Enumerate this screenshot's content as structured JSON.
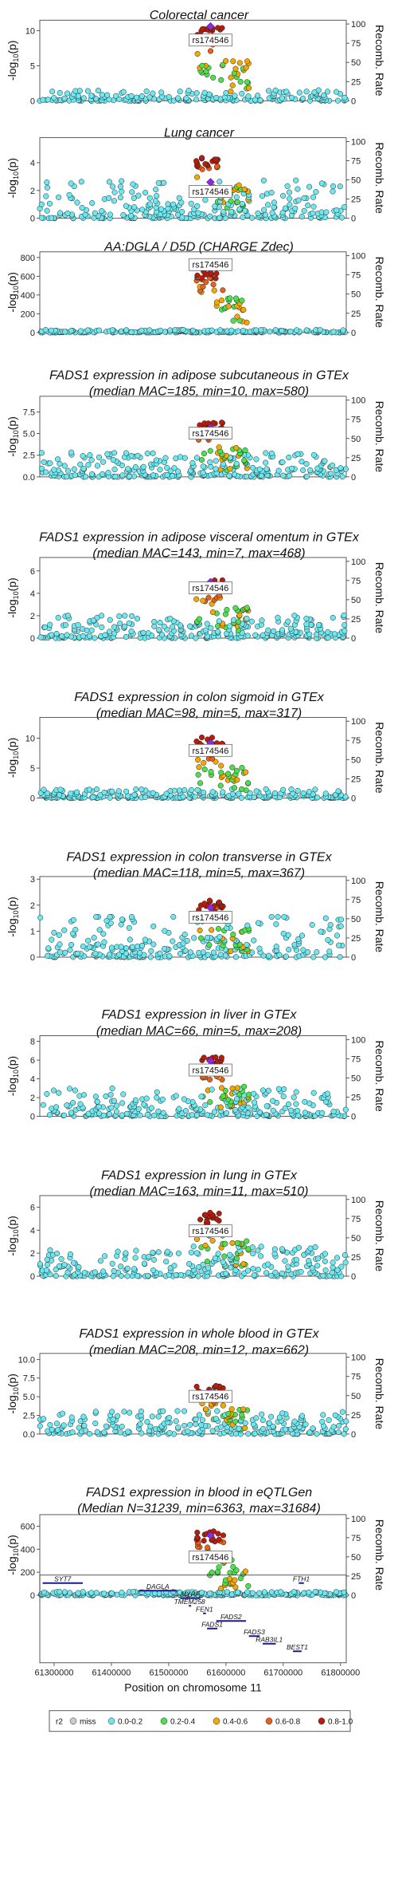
{
  "chart_data": {
    "type": "scatter",
    "lead_snp": "rs174546",
    "recomb_axis": {
      "label": "Recomb. Rate",
      "ticks": [
        0,
        25,
        50,
        75,
        100
      ]
    },
    "ylabel_parts": {
      "pre": "-log",
      "sub": "10",
      "post": "(p)"
    },
    "panels": [
      {
        "id": "crc",
        "title_lines": [
          "Colorectal cancer"
        ],
        "ymax": 11.5,
        "yticks": [
          0,
          5,
          10
        ],
        "yticklabels": [
          "0",
          "5",
          "10"
        ],
        "peak": 10.5,
        "nbg": 190,
        "bg_frac": 0.06,
        "label_y": 8.6,
        "lead_y": 10.6
      },
      {
        "id": "lung",
        "title_lines": [
          "Lung cancer"
        ],
        "ymax": 5.8,
        "yticks": [
          0,
          2,
          4
        ],
        "yticklabels": [
          "0",
          "2",
          "4"
        ],
        "peak": 4.4,
        "nbg": 260,
        "bg_frac": 0.22,
        "label_y": 1.9,
        "lead_y": 2.6
      },
      {
        "id": "aa",
        "title_lines": [
          "AA:DGLA / D5D (CHARGE Zdec)"
        ],
        "ymax": 860,
        "yticks": [
          0,
          200,
          400,
          600,
          800
        ],
        "yticklabels": [
          "0",
          "200",
          "400",
          "600",
          "800"
        ],
        "peak": 700,
        "nbg": 220,
        "bg_frac": 0.015,
        "label_y": 720,
        "lead_y": 680
      },
      {
        "id": "adip_sc",
        "title_lines": [
          "FADS1 expression in adipose subcutaneous in GTEx",
          "(median MAC=185, min=10, max=580)"
        ],
        "ymax": 9.3,
        "yticks": [
          0,
          2.5,
          5,
          7.5
        ],
        "yticklabels": [
          "0.0",
          "2.5",
          "5.0",
          "7.5"
        ],
        "peak": 6.4,
        "nbg": 260,
        "bg_frac": 0.14,
        "label_y": 5.0,
        "lead_y": 5.7
      },
      {
        "id": "adip_vo",
        "title_lines": [
          "FADS1 expression in adipose visceral omentum in GTEx",
          "(median MAC=143, min=7, max=468)"
        ],
        "ymax": 7.2,
        "yticks": [
          0,
          2,
          4,
          6
        ],
        "yticklabels": [
          "0",
          "2",
          "4",
          "6"
        ],
        "peak": 5.2,
        "nbg": 260,
        "bg_frac": 0.13,
        "label_y": 4.45,
        "lead_y": 5.0
      },
      {
        "id": "colon_sig",
        "title_lines": [
          "FADS1 expression in colon sigmoid in GTEx",
          "(median MAC=98, min=5, max=317)"
        ],
        "ymax": 13.5,
        "yticks": [
          0,
          5,
          10
        ],
        "yticklabels": [
          "0",
          "5",
          "10"
        ],
        "peak": 10.2,
        "nbg": 240,
        "bg_frac": 0.05,
        "label_y": 7.9,
        "lead_y": 9.2
      },
      {
        "id": "colon_tr",
        "title_lines": [
          "FADS1 expression in colon transverse in GTEx",
          "(median MAC=118, min=5, max=367)"
        ],
        "ymax": 3.1,
        "yticks": [
          0,
          1,
          2,
          3
        ],
        "yticklabels": [
          "0",
          "1",
          "2",
          "3"
        ],
        "peak": 2.2,
        "nbg": 260,
        "bg_frac": 0.25,
        "label_y": 1.52,
        "lead_y": 1.9
      },
      {
        "id": "liver",
        "title_lines": [
          "FADS1 expression in liver in GTEx",
          "(median MAC=66, min=5, max=208)"
        ],
        "ymax": 8.6,
        "yticks": [
          0,
          2,
          4,
          6,
          8
        ],
        "yticklabels": [
          "0",
          "2",
          "4",
          "6",
          "8"
        ],
        "peak": 6.3,
        "nbg": 250,
        "bg_frac": 0.16,
        "label_y": 4.9,
        "lead_y": 5.9
      },
      {
        "id": "lung_gtex",
        "title_lines": [
          "FADS1 expression in lung in GTEx",
          "(median MAC=163, min=11, max=510)"
        ],
        "ymax": 7.0,
        "yticks": [
          0,
          2,
          4,
          6
        ],
        "yticklabels": [
          "0",
          "2",
          "4",
          "6"
        ],
        "peak": 5.6,
        "nbg": 260,
        "bg_frac": 0.17,
        "label_y": 3.9,
        "lead_y": 4.1
      },
      {
        "id": "blood_gtex",
        "title_lines": [
          "FADS1 expression in whole blood in GTEx",
          "(median MAC=208, min=12, max=662)"
        ],
        "ymax": 10.8,
        "yticks": [
          0,
          2.5,
          5,
          7.5,
          10
        ],
        "yticklabels": [
          "0.0",
          "2.5",
          "5.0",
          "7.5",
          "10.0"
        ],
        "peak": 6.6,
        "nbg": 250,
        "bg_frac": 0.13,
        "label_y": 5.0,
        "lead_y": 5.6
      },
      {
        "id": "eqtlgen",
        "title_lines": [
          "FADS1 expression in blood in eQTLGen",
          "(Median N=31239, min=6363, max=31684)"
        ],
        "ymax": 700,
        "yticks": [
          0,
          200,
          400,
          600
        ],
        "yticklabels": [
          "0",
          "200",
          "400",
          "600"
        ],
        "peak": 560,
        "nbg": 240,
        "bg_frac": 0.02,
        "label_y": 330,
        "lead_y": 520
      }
    ],
    "x_axis": {
      "label": "Position on chromosome 11",
      "min": 61275000,
      "max": 61810000,
      "ticks": [
        61300000,
        61400000,
        61500000,
        61600000,
        61700000,
        61800000
      ],
      "tick_labels": [
        "61300000",
        "61400000",
        "61500000",
        "61600000",
        "61700000",
        "61800000"
      ]
    },
    "genes": [
      {
        "name": "SYT7",
        "start": 61280000,
        "end": 61350000,
        "row": 0
      },
      {
        "name": "FTH1",
        "start": 61727000,
        "end": 61736000,
        "row": 0
      },
      {
        "name": "DAGLA",
        "start": 61448000,
        "end": 61514000,
        "row": 1
      },
      {
        "name": "MYRF",
        "start": 61520000,
        "end": 61555000,
        "row": 2
      },
      {
        "name": "TMEM258",
        "start": 61535000,
        "end": 61538000,
        "row": 3
      },
      {
        "name": "FEN1",
        "start": 61560000,
        "end": 61565000,
        "row": 4
      },
      {
        "name": "FADS2",
        "start": 61583000,
        "end": 61635000,
        "row": 5
      },
      {
        "name": "FADS1",
        "start": 61567000,
        "end": 61585000,
        "row": 6
      },
      {
        "name": "FADS3",
        "start": 61640000,
        "end": 61659000,
        "row": 7
      },
      {
        "name": "RAB3IL1",
        "start": 61664000,
        "end": 61687000,
        "row": 8
      },
      {
        "name": "BEST1",
        "start": 61717000,
        "end": 61732000,
        "row": 9
      }
    ],
    "legend": {
      "title": "r2",
      "items": [
        {
          "label": "miss",
          "color": "#cccccc"
        },
        {
          "label": "0.0-0.2",
          "color": "#6ee8f0"
        },
        {
          "label": "0.2-0.4",
          "color": "#4fe04f"
        },
        {
          "label": "0.4-0.6",
          "color": "#f5a800"
        },
        {
          "label": "0.6-0.8",
          "color": "#e8601a"
        },
        {
          "label": "0.8-1.0",
          "color": "#b51e0c"
        }
      ]
    },
    "colors": {
      "lead": "#8a2be2",
      "gene_line": "#1c1a8c",
      "recomb_line": "#4a6fd0"
    }
  }
}
